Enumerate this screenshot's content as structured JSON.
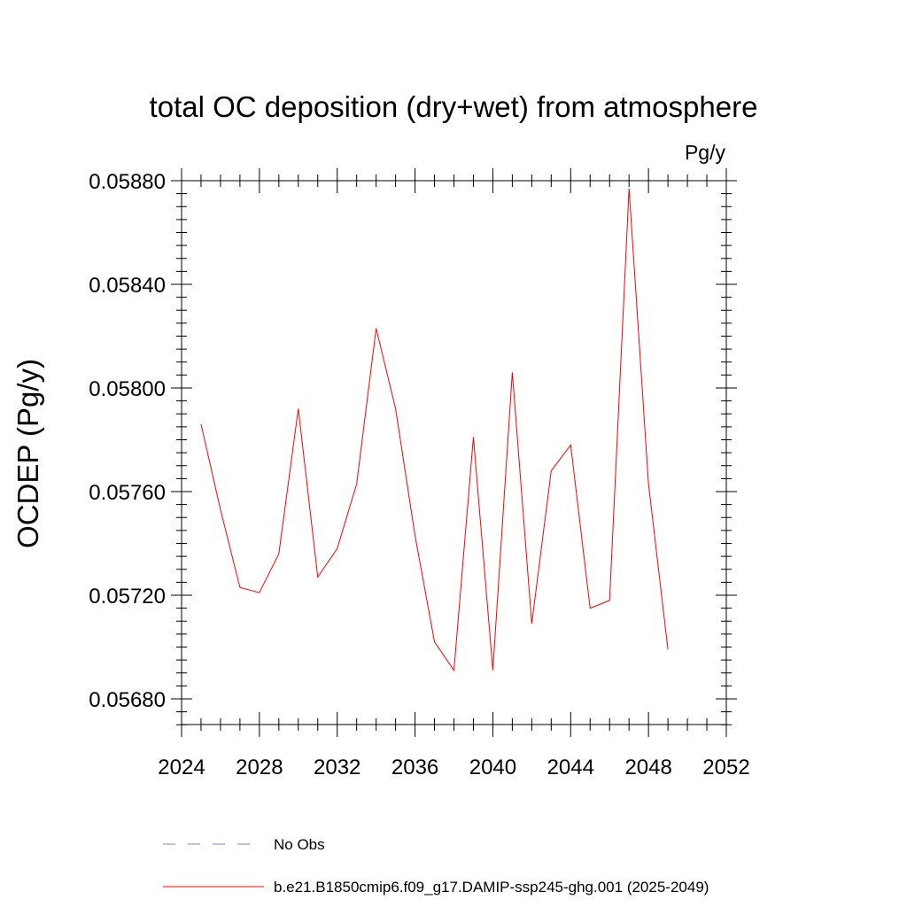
{
  "chart_data": {
    "type": "line",
    "title": "total OC deposition (dry+wet) from atmosphere",
    "units_label": "Pg/y",
    "ylabel": "OCDEP  (Pg/y)",
    "xlabel": "",
    "xlim": [
      2024,
      2052
    ],
    "ylim": [
      0.0567,
      0.05875
    ],
    "x_ticks": [
      2024,
      2028,
      2032,
      2036,
      2040,
      2044,
      2048,
      2052
    ],
    "x_tick_labels": [
      "2024",
      "2028",
      "2032",
      "2036",
      "2040",
      "2044",
      "2048",
      "2052"
    ],
    "y_ticks": [
      0.0568,
      0.0572,
      0.0576,
      0.058,
      0.0584,
      0.0588
    ],
    "y_tick_labels": [
      "0.05680",
      "0.05720",
      "0.05760",
      "0.05800",
      "0.05840",
      "0.05880"
    ],
    "grid": false,
    "legend_position": "bottom",
    "colors": {
      "model": "#ff0000",
      "obs": "#8080c0"
    },
    "series": [
      {
        "name": "b.e21.B1850cmip6.f09_g17.DAMIP-ssp245-ghg.001 (2025-2049)",
        "style": "solid",
        "x": [
          2025,
          2026,
          2027,
          2028,
          2029,
          2030,
          2031,
          2032,
          2033,
          2034,
          2035,
          2036,
          2037,
          2038,
          2039,
          2040,
          2041,
          2042,
          2043,
          2044,
          2045,
          2046,
          2047,
          2048,
          2049
        ],
        "values": [
          0.05786,
          0.05753,
          0.05723,
          0.05721,
          0.05736,
          0.05792,
          0.05727,
          0.05738,
          0.05763,
          0.05823,
          0.05792,
          0.05743,
          0.05702,
          0.05691,
          0.05781,
          0.05691,
          0.05806,
          0.05709,
          0.05768,
          0.05778,
          0.05715,
          0.05718,
          0.05877,
          0.05763,
          0.05699
        ]
      },
      {
        "name": "No Obs",
        "style": "dashed",
        "x": [],
        "values": []
      }
    ]
  }
}
